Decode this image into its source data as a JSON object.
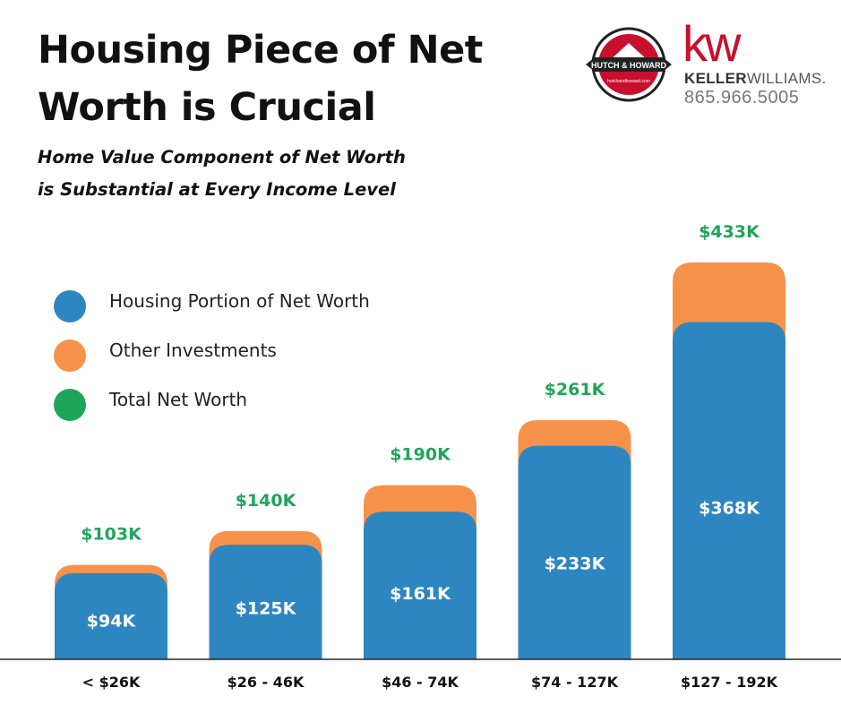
{
  "header": {
    "title_line1": "Housing Piece of Net",
    "title_line2": "Worth is Crucial",
    "subtitle_line1": "Home Value Component of Net Worth",
    "subtitle_line2": "is Substantial at Every Income Level"
  },
  "branding": {
    "hh_badge_text": "HUTCH & HOWARD",
    "hh_small_text": "hutchandhoward.com",
    "kw_mark": "kw",
    "kw_name_bold": "KELLER",
    "kw_name_light": "WILLIAMS.",
    "kw_phone": "865.966.5005",
    "kw_color": "#c8102e"
  },
  "legend": {
    "items": [
      {
        "label": "Housing Portion of Net Worth",
        "color": "#2e86c1"
      },
      {
        "label": "Other Investments",
        "color": "#f7924a"
      },
      {
        "label": "Total Net Worth",
        "color": "#1fa55a"
      }
    ]
  },
  "chart_data": {
    "type": "bar",
    "stacked": true,
    "categories": [
      "< $26K",
      "$26 - 46K",
      "$46 - 74K",
      "$74 - 127K",
      "$127 - 192K"
    ],
    "series": [
      {
        "name": "Housing Portion of Net Worth",
        "color": "#2e86c1",
        "values": [
          94,
          125,
          161,
          233,
          368
        ],
        "labels": [
          "$94K",
          "$125K",
          "$161K",
          "$233K",
          "$368K"
        ]
      },
      {
        "name": "Other Investments",
        "color": "#f7924a",
        "values": [
          9,
          15,
          29,
          28,
          65
        ]
      }
    ],
    "totals": {
      "name": "Total Net Worth",
      "color": "#1fa55a",
      "values": [
        103,
        140,
        190,
        261,
        433
      ],
      "labels": [
        "$103K",
        "$140K",
        "$190K",
        "$261K",
        "$433K"
      ]
    },
    "unit": "K",
    "ylim": [
      0,
      433
    ],
    "grid": false,
    "legend_position": "left"
  }
}
